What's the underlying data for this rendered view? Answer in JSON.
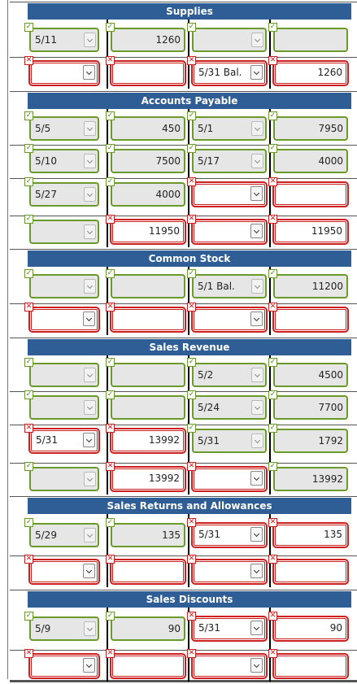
{
  "sections": [
    {
      "title": "Supplies",
      "rows": [
        [
          {
            "kind": "select",
            "status": "correct",
            "value": "5/11"
          },
          {
            "kind": "input",
            "status": "correct",
            "value": "1260"
          },
          {
            "kind": "select",
            "status": "correct",
            "value": ""
          },
          {
            "kind": "input",
            "status": "correct",
            "value": ""
          }
        ],
        [
          {
            "kind": "select",
            "status": "incorrect",
            "value": ""
          },
          {
            "kind": "input",
            "status": "incorrect",
            "value": ""
          },
          {
            "kind": "select",
            "status": "incorrect",
            "value": "5/31 Bal."
          },
          {
            "kind": "input",
            "status": "incorrect",
            "value": "1260"
          }
        ]
      ]
    },
    {
      "title": "Accounts Payable",
      "rows": [
        [
          {
            "kind": "select",
            "status": "correct",
            "value": "5/5"
          },
          {
            "kind": "input",
            "status": "correct",
            "value": "450"
          },
          {
            "kind": "select",
            "status": "correct",
            "value": "5/1"
          },
          {
            "kind": "input",
            "status": "correct",
            "value": "7950"
          }
        ],
        [
          {
            "kind": "select",
            "status": "correct",
            "value": "5/10"
          },
          {
            "kind": "input",
            "status": "correct",
            "value": "7500"
          },
          {
            "kind": "select",
            "status": "correct",
            "value": "5/17"
          },
          {
            "kind": "input",
            "status": "correct",
            "value": "4000"
          }
        ],
        [
          {
            "kind": "select",
            "status": "correct",
            "value": "5/27"
          },
          {
            "kind": "input",
            "status": "correct",
            "value": "4000"
          },
          {
            "kind": "select",
            "status": "incorrect",
            "value": ""
          },
          {
            "kind": "input",
            "status": "incorrect",
            "value": ""
          }
        ],
        [
          {
            "kind": "select",
            "status": "correct",
            "value": ""
          },
          {
            "kind": "input",
            "status": "incorrect",
            "value": "11950"
          },
          {
            "kind": "select",
            "status": "incorrect",
            "value": ""
          },
          {
            "kind": "input",
            "status": "incorrect",
            "value": "11950"
          }
        ]
      ]
    },
    {
      "title": "Common Stock",
      "rows": [
        [
          {
            "kind": "select",
            "status": "correct",
            "value": ""
          },
          {
            "kind": "input",
            "status": "correct",
            "value": ""
          },
          {
            "kind": "select",
            "status": "correct",
            "value": "5/1 Bal."
          },
          {
            "kind": "input",
            "status": "correct",
            "value": "11200"
          }
        ],
        [
          {
            "kind": "select",
            "status": "incorrect",
            "value": ""
          },
          {
            "kind": "input",
            "status": "incorrect",
            "value": ""
          },
          {
            "kind": "select",
            "status": "incorrect",
            "value": ""
          },
          {
            "kind": "input",
            "status": "incorrect",
            "value": ""
          }
        ]
      ]
    },
    {
      "title": "Sales Revenue",
      "rows": [
        [
          {
            "kind": "select",
            "status": "correct",
            "value": ""
          },
          {
            "kind": "input",
            "status": "correct",
            "value": ""
          },
          {
            "kind": "select",
            "status": "correct",
            "value": "5/2"
          },
          {
            "kind": "input",
            "status": "correct",
            "value": "4500"
          }
        ],
        [
          {
            "kind": "select",
            "status": "correct",
            "value": ""
          },
          {
            "kind": "input",
            "status": "correct",
            "value": ""
          },
          {
            "kind": "select",
            "status": "correct",
            "value": "5/24"
          },
          {
            "kind": "input",
            "status": "correct",
            "value": "7700"
          }
        ],
        [
          {
            "kind": "select",
            "status": "incorrect",
            "value": "5/31"
          },
          {
            "kind": "input",
            "status": "incorrect",
            "value": "13992"
          },
          {
            "kind": "select",
            "status": "correct",
            "value": "5/31"
          },
          {
            "kind": "input",
            "status": "correct",
            "value": "1792"
          }
        ],
        [
          {
            "kind": "select",
            "status": "correct",
            "value": ""
          },
          {
            "kind": "input",
            "status": "incorrect",
            "value": "13992"
          },
          {
            "kind": "select",
            "status": "incorrect",
            "value": ""
          },
          {
            "kind": "input",
            "status": "correct",
            "value": "13992"
          }
        ]
      ]
    },
    {
      "title": "Sales Returns and Allowances",
      "rows": [
        [
          {
            "kind": "select",
            "status": "correct",
            "value": "5/29"
          },
          {
            "kind": "input",
            "status": "correct",
            "value": "135"
          },
          {
            "kind": "select",
            "status": "incorrect",
            "value": "5/31"
          },
          {
            "kind": "input",
            "status": "incorrect",
            "value": "135"
          }
        ],
        [
          {
            "kind": "select",
            "status": "incorrect",
            "value": ""
          },
          {
            "kind": "input",
            "status": "incorrect",
            "value": ""
          },
          {
            "kind": "select",
            "status": "incorrect",
            "value": ""
          },
          {
            "kind": "input",
            "status": "incorrect",
            "value": ""
          }
        ]
      ]
    },
    {
      "title": "Sales Discounts",
      "rows": [
        [
          {
            "kind": "select",
            "status": "correct",
            "value": "5/9"
          },
          {
            "kind": "input",
            "status": "correct",
            "value": "90"
          },
          {
            "kind": "select",
            "status": "incorrect",
            "value": "5/31"
          },
          {
            "kind": "input",
            "status": "incorrect",
            "value": "90"
          }
        ],
        [
          {
            "kind": "select",
            "status": "incorrect",
            "value": ""
          },
          {
            "kind": "input",
            "status": "incorrect",
            "value": ""
          },
          {
            "kind": "select",
            "status": "incorrect",
            "value": ""
          },
          {
            "kind": "input",
            "status": "incorrect",
            "value": ""
          }
        ]
      ]
    }
  ],
  "marks": {
    "correct": "✓",
    "incorrect": "✕"
  },
  "colors": {
    "header_bg": "#2f5e96",
    "correct": "#6a9a2c",
    "incorrect": "#cc1f1f"
  }
}
